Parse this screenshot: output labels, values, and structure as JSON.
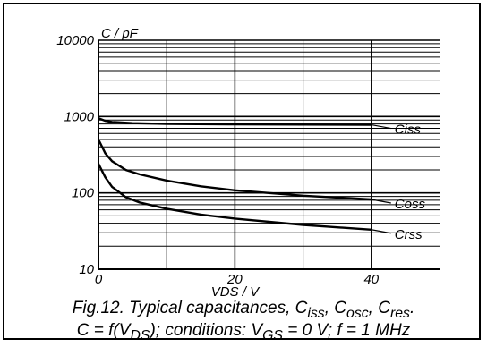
{
  "chart_data": {
    "type": "line",
    "yscale": "log",
    "ylim": [
      10,
      10000
    ],
    "xlim": [
      0,
      50
    ],
    "ylabel": "C / pF",
    "xlabel": "VDS / V",
    "x_ticks": [
      "0",
      "20",
      "40"
    ],
    "y_ticks": [
      "10",
      "100",
      "1000",
      "10000"
    ],
    "series": [
      {
        "name": "Ciss",
        "x": [
          0,
          1,
          2,
          5,
          10,
          20,
          30,
          40
        ],
        "values": [
          950,
          880,
          850,
          820,
          800,
          790,
          785,
          780
        ]
      },
      {
        "name": "Coss",
        "x": [
          0,
          1,
          2,
          4,
          6,
          10,
          15,
          20,
          30,
          40
        ],
        "values": [
          500,
          330,
          260,
          200,
          175,
          145,
          122,
          108,
          92,
          82
        ]
      },
      {
        "name": "Crss",
        "x": [
          0,
          1,
          2,
          4,
          6,
          10,
          15,
          20,
          30,
          40
        ],
        "values": [
          240,
          160,
          120,
          88,
          75,
          62,
          52,
          46,
          38,
          33
        ]
      }
    ],
    "grid": true
  },
  "caption": {
    "line1": "Fig.12.   Typical capacitances, C",
    "line1_sub1": "iss",
    "line1_mid": ", C",
    "line1_sub2": "osc",
    "line1_mid2": ", C",
    "line1_sub3": "res",
    "line1_end": ".",
    "line2a": "C = f(V",
    "line2_sub1": "DS",
    "line2b": "); conditions: V",
    "line2_sub2": "GS",
    "line2c": " = 0 V; f = 1 MHz"
  }
}
